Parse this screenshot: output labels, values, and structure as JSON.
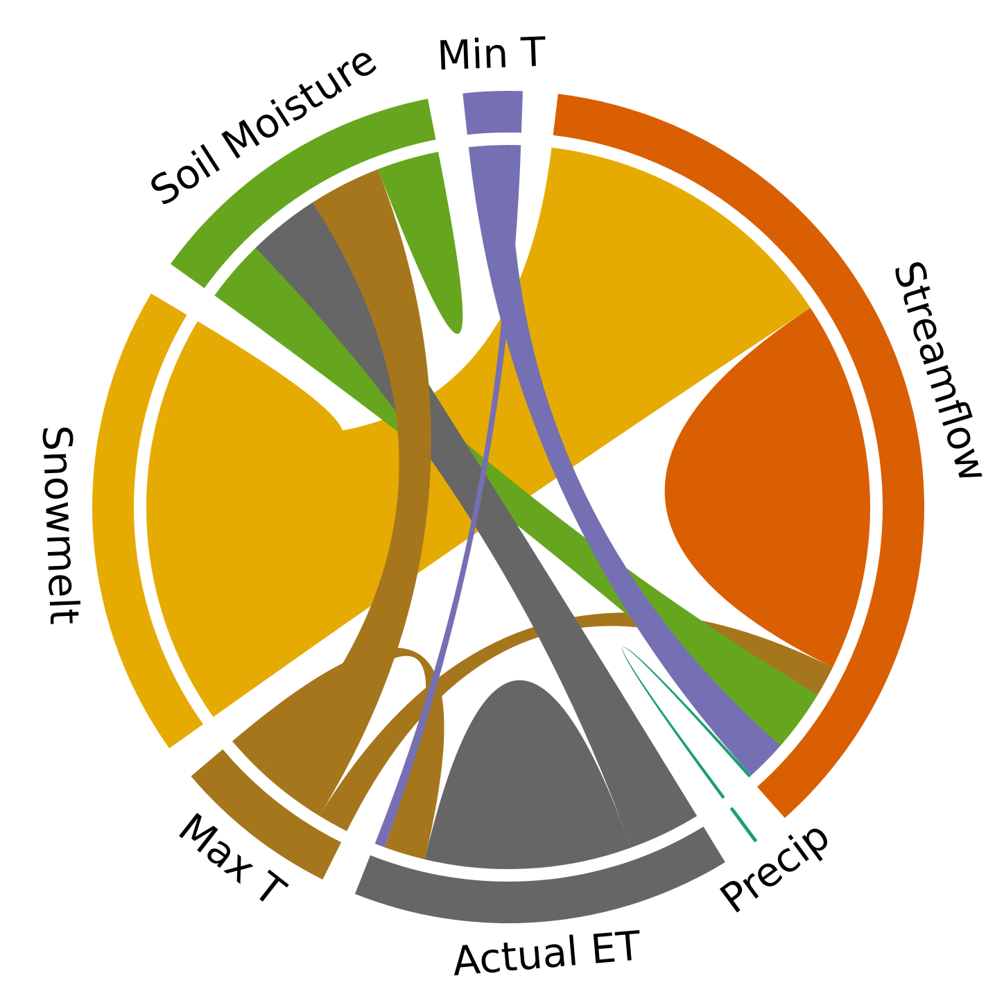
{
  "chart_data": {
    "type": "chord",
    "nodes": [
      {
        "id": "precip",
        "label": "Precip",
        "color": "#1b9e77"
      },
      {
        "id": "streamflow",
        "label": "Streamflow",
        "color": "#d95f02"
      },
      {
        "id": "min_t",
        "label": "Min T",
        "color": "#7570b3"
      },
      {
        "id": "soil_moisture",
        "label": "Soil Moisture",
        "color": "#66a61e"
      },
      {
        "id": "snowmelt",
        "label": "Snowmelt",
        "color": "#e6ab02"
      },
      {
        "id": "max_t",
        "label": "Max T",
        "color": "#a6761d"
      },
      {
        "id": "actual_et",
        "label": "Actual ET",
        "color": "#666666"
      }
    ],
    "links": [
      {
        "source": "snowmelt",
        "target": "streamflow",
        "value": 30
      },
      {
        "source": "streamflow",
        "target": "streamflow",
        "value": 18
      },
      {
        "source": "max_t",
        "target": "streamflow",
        "value": 3
      },
      {
        "source": "soil_moisture",
        "target": "streamflow",
        "value": 6
      },
      {
        "source": "min_t",
        "target": "streamflow",
        "value": 4
      },
      {
        "source": "actual_et",
        "target": "soil_moisture",
        "value": 7
      },
      {
        "source": "max_t",
        "target": "soil_moisture",
        "value": 7
      },
      {
        "source": "soil_moisture",
        "target": "soil_moisture",
        "value": 3
      },
      {
        "source": "actual_et",
        "target": "actual_et",
        "value": 10
      },
      {
        "source": "max_t",
        "target": "actual_et",
        "value": 4
      },
      {
        "source": "snowmelt",
        "target": "snowmelt",
        "value": 5
      },
      {
        "source": "precip",
        "target": "streamflow",
        "value": 0.3
      },
      {
        "source": "min_t",
        "target": "actual_et",
        "value": 1
      }
    ]
  }
}
